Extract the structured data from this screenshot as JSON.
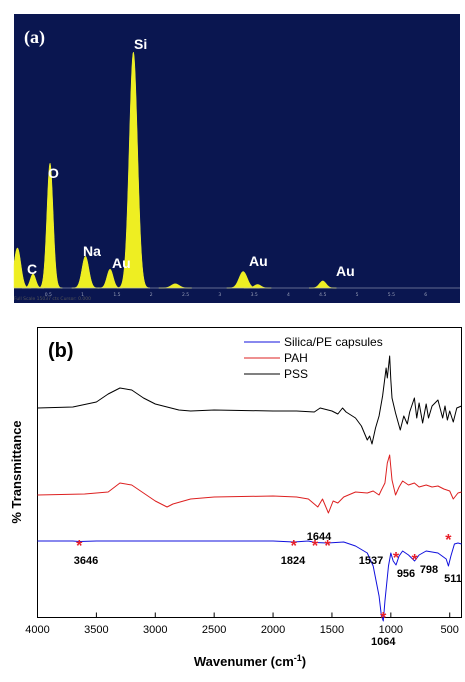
{
  "chart_data": [
    {
      "type": "area",
      "panel_label": "(a)",
      "x_range": [
        0,
        6.5
      ],
      "x_ticks": [
        "0.5",
        "1",
        "1.5",
        "2",
        "2.5",
        "3",
        "3.5",
        "4",
        "4.5",
        "5",
        "5.5",
        "6"
      ],
      "footer": "Full Scale 15037 cts Cursor: 0.000",
      "peaks": [
        {
          "element": "C",
          "x": 0.277,
          "height": 0.06,
          "width": 0.04
        },
        {
          "element": "O",
          "x": 0.525,
          "height": 0.53,
          "width": 0.045
        },
        {
          "element": "Na",
          "x": 1.041,
          "height": 0.135,
          "width": 0.05
        },
        {
          "element": "Au",
          "x": 1.4,
          "height": 0.08,
          "width": 0.045
        },
        {
          "element": "Si",
          "x": 1.74,
          "height": 1.0,
          "width": 0.06
        },
        {
          "element": "Au",
          "x": 3.34,
          "height": 0.07,
          "width": 0.06
        },
        {
          "element": "Au",
          "x": 4.5,
          "height": 0.03,
          "width": 0.05
        }
      ],
      "background_peaks": [
        {
          "x": 0.05,
          "height": 0.17,
          "width": 0.05
        },
        {
          "x": 2.35,
          "height": 0.018,
          "width": 0.06
        },
        {
          "x": 3.55,
          "height": 0.015,
          "width": 0.05
        }
      ]
    },
    {
      "type": "line",
      "panel_label": "(b)",
      "xlabel": "Wavenumer (cm",
      "xlabel_sup": "-1",
      "xlabel_close": ")",
      "ylabel": "% Transmittance",
      "xlim": [
        4000,
        400
      ],
      "x_ticks": [
        4000,
        3500,
        3000,
        2500,
        2000,
        1500,
        1000,
        500
      ],
      "series": [
        {
          "name": "Silica/PE capsules",
          "color": "#1010dd",
          "points": [
            [
              4000,
              0
            ],
            [
              3700,
              0
            ],
            [
              3646,
              -0.5
            ],
            [
              3500,
              0
            ],
            [
              3000,
              0
            ],
            [
              2500,
              0
            ],
            [
              2000,
              0
            ],
            [
              1824,
              -1
            ],
            [
              1700,
              0
            ],
            [
              1644,
              -1.5
            ],
            [
              1537,
              -2
            ],
            [
              1400,
              -1
            ],
            [
              1300,
              -5
            ],
            [
              1200,
              -12
            ],
            [
              1150,
              -25
            ],
            [
              1100,
              -55
            ],
            [
              1080,
              -75
            ],
            [
              1064,
              -80
            ],
            [
              1050,
              -60
            ],
            [
              1020,
              -25
            ],
            [
              1000,
              -12
            ],
            [
              980,
              -20
            ],
            [
              956,
              -24
            ],
            [
              930,
              -15
            ],
            [
              900,
              -10
            ],
            [
              850,
              -14
            ],
            [
              798,
              -20
            ],
            [
              760,
              -14
            ],
            [
              700,
              -10
            ],
            [
              600,
              -12
            ],
            [
              530,
              -18
            ],
            [
              511,
              -25
            ],
            [
              490,
              -15
            ],
            [
              460,
              -3
            ],
            [
              430,
              -2
            ],
            [
              400,
              -3
            ]
          ]
        },
        {
          "name": "PAH",
          "color": "#dd2020",
          "points": [
            [
              4000,
              0
            ],
            [
              3600,
              1
            ],
            [
              3400,
              3
            ],
            [
              3300,
              12
            ],
            [
              3200,
              10
            ],
            [
              3100,
              2
            ],
            [
              3000,
              -6
            ],
            [
              2900,
              -12
            ],
            [
              2850,
              -9
            ],
            [
              2700,
              -4
            ],
            [
              2500,
              -2
            ],
            [
              2000,
              -1
            ],
            [
              1800,
              -2
            ],
            [
              1700,
              -4
            ],
            [
              1620,
              -12
            ],
            [
              1580,
              -4
            ],
            [
              1530,
              -18
            ],
            [
              1490,
              -6
            ],
            [
              1450,
              -8
            ],
            [
              1400,
              -2
            ],
            [
              1300,
              3
            ],
            [
              1200,
              2
            ],
            [
              1150,
              4
            ],
            [
              1100,
              0
            ],
            [
              1080,
              5
            ],
            [
              1050,
              12
            ],
            [
              1030,
              32
            ],
            [
              1010,
              40
            ],
            [
              990,
              15
            ],
            [
              960,
              0
            ],
            [
              930,
              8
            ],
            [
              900,
              14
            ],
            [
              850,
              10
            ],
            [
              800,
              12
            ],
            [
              760,
              8
            ],
            [
              700,
              10
            ],
            [
              650,
              8
            ],
            [
              600,
              9
            ],
            [
              550,
              6
            ],
            [
              500,
              4
            ],
            [
              470,
              -4
            ],
            [
              430,
              2
            ],
            [
              400,
              3
            ]
          ]
        },
        {
          "name": "PSS",
          "color": "#000000",
          "points": [
            [
              4000,
              0
            ],
            [
              3700,
              1
            ],
            [
              3500,
              6
            ],
            [
              3400,
              14
            ],
            [
              3300,
              20
            ],
            [
              3200,
              18
            ],
            [
              3100,
              10
            ],
            [
              3000,
              4
            ],
            [
              2900,
              1
            ],
            [
              2800,
              -2
            ],
            [
              2700,
              -3
            ],
            [
              2500,
              -2
            ],
            [
              2000,
              -3
            ],
            [
              1800,
              -3
            ],
            [
              1650,
              -4
            ],
            [
              1600,
              0
            ],
            [
              1500,
              -3
            ],
            [
              1450,
              -6
            ],
            [
              1410,
              0
            ],
            [
              1380,
              -4
            ],
            [
              1300,
              -10
            ],
            [
              1250,
              -18
            ],
            [
              1200,
              -32
            ],
            [
              1180,
              -28
            ],
            [
              1160,
              -36
            ],
            [
              1130,
              -20
            ],
            [
              1100,
              -8
            ],
            [
              1070,
              12
            ],
            [
              1040,
              40
            ],
            [
              1030,
              30
            ],
            [
              1010,
              52
            ],
            [
              1000,
              28
            ],
            [
              990,
              10
            ],
            [
              960,
              -5
            ],
            [
              920,
              -22
            ],
            [
              890,
              -8
            ],
            [
              860,
              -16
            ],
            [
              840,
              -4
            ],
            [
              800,
              10
            ],
            [
              780,
              -10
            ],
            [
              760,
              5
            ],
            [
              730,
              -15
            ],
            [
              700,
              4
            ],
            [
              680,
              -10
            ],
            [
              650,
              2
            ],
            [
              600,
              8
            ],
            [
              560,
              -10
            ],
            [
              540,
              2
            ],
            [
              520,
              -12
            ],
            [
              500,
              -3
            ],
            [
              470,
              -14
            ],
            [
              440,
              0
            ],
            [
              400,
              2
            ]
          ]
        }
      ],
      "annotations": [
        {
          "label": "3646",
          "x": 3646,
          "star": true
        },
        {
          "label": "1824",
          "x": 1824,
          "star": true
        },
        {
          "label": "1644",
          "x": 1644,
          "star": true
        },
        {
          "label": "1537",
          "x": 1537,
          "star": true
        },
        {
          "label": "956",
          "x": 956,
          "star": true
        },
        {
          "label": "798",
          "x": 798,
          "star": true
        },
        {
          "label": "511",
          "x": 511,
          "star": true
        },
        {
          "label": "1064",
          "x": 1064,
          "star": true
        }
      ]
    }
  ]
}
